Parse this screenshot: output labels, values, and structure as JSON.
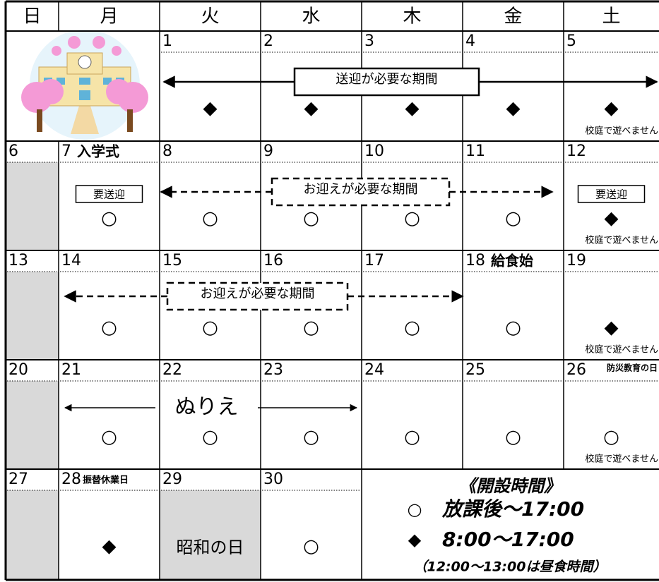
{
  "header": {
    "weekdays": [
      "日",
      "月",
      "火",
      "水",
      "木",
      "金",
      "土"
    ]
  },
  "weeks": [
    [
      null,
      null,
      {
        "date": "1",
        "mark": "◆"
      },
      {
        "date": "2",
        "mark": "◆"
      },
      {
        "date": "3",
        "mark": "◆"
      },
      {
        "date": "4",
        "mark": "◆"
      },
      {
        "date": "5",
        "mark": "◆",
        "note": "校庭で遊べません"
      }
    ],
    [
      {
        "date": "6"
      },
      {
        "date": "7",
        "event": "入学式",
        "tag": "要送迎",
        "mark": "○"
      },
      {
        "date": "8",
        "mark": "○"
      },
      {
        "date": "9",
        "mark": "○"
      },
      {
        "date": "10",
        "mark": "○"
      },
      {
        "date": "11",
        "mark": "○"
      },
      {
        "date": "12",
        "tag": "要送迎",
        "mark": "◆",
        "note": "校庭で遊べません"
      }
    ],
    [
      {
        "date": "13"
      },
      {
        "date": "14",
        "mark": "○"
      },
      {
        "date": "15",
        "mark": "○"
      },
      {
        "date": "16",
        "mark": "○"
      },
      {
        "date": "17",
        "mark": "○"
      },
      {
        "date": "18",
        "event": "給食始",
        "mark": "○"
      },
      {
        "date": "19",
        "mark": "◆",
        "note": "校庭で遊べません"
      }
    ],
    [
      {
        "date": "20"
      },
      {
        "date": "21",
        "mark": "○"
      },
      {
        "date": "22",
        "mark": "○"
      },
      {
        "date": "23",
        "mark": "○"
      },
      {
        "date": "24",
        "mark": "○"
      },
      {
        "date": "25",
        "mark": "○"
      },
      {
        "date": "26",
        "event": "防災教育の日",
        "mark": "○",
        "note": "校庭で遊べません"
      }
    ],
    [
      {
        "date": "27"
      },
      {
        "date": "28",
        "event": "振替休業日",
        "mark": "◆"
      },
      {
        "date": "29",
        "holiday": "昭和の日"
      },
      {
        "date": "30",
        "mark": "○"
      },
      null,
      null,
      null
    ]
  ],
  "bands": [
    {
      "label": "送迎が必要な期間"
    },
    {
      "label": "お迎えが必要な期間"
    },
    {
      "label": "お迎えが必要な期間"
    },
    {
      "label": "ぬりえ"
    }
  ],
  "legend": {
    "title": "《開設時間》",
    "items": [
      {
        "symbol": "○",
        "text": "放課後～17:00"
      },
      {
        "symbol": "◆",
        "text": "8:00～17:00"
      }
    ],
    "note": "（12:00～13:00は昼食時間）"
  }
}
